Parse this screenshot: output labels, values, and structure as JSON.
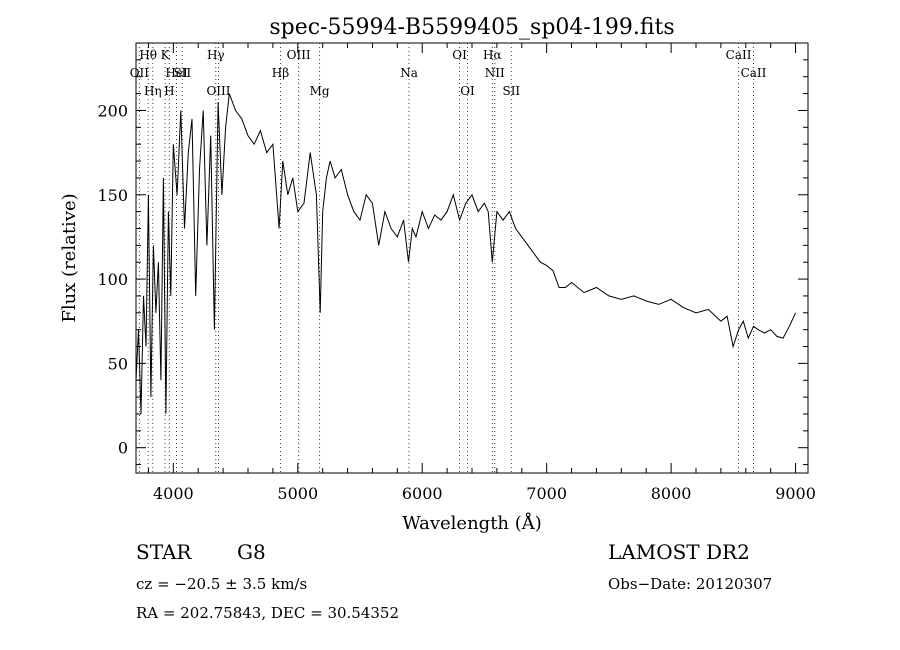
{
  "chart_data": {
    "type": "line",
    "title": "spec-55994-B5599405_sp04-199.fits",
    "xlabel": "Wavelength (Å)",
    "ylabel": "Flux (relative)",
    "xlim": [
      3700,
      9100
    ],
    "ylim": [
      -15,
      240
    ],
    "xticks": [
      4000,
      5000,
      6000,
      7000,
      8000,
      9000
    ],
    "yticks": [
      0,
      50,
      100,
      150,
      200
    ],
    "grid": false,
    "line_color": "#000000",
    "marker_color": "#cc0000",
    "series": [
      {
        "x": [
          3700,
          3720,
          3740,
          3760,
          3780,
          3800,
          3820,
          3840,
          3860,
          3880,
          3900,
          3920,
          3940,
          3960,
          3980,
          4000,
          4030,
          4060,
          4090,
          4120,
          4150,
          4180,
          4210,
          4240,
          4270,
          4300,
          4330,
          4360,
          4390,
          4420,
          4450,
          4500,
          4550,
          4600,
          4650,
          4700,
          4750,
          4800,
          4850,
          4880,
          4920,
          4960,
          5000,
          5050,
          5100,
          5150,
          5180,
          5200,
          5230,
          5260,
          5300,
          5350,
          5400,
          5450,
          5500,
          5550,
          5600,
          5650,
          5700,
          5750,
          5800,
          5850,
          5890,
          5920,
          5950,
          6000,
          6050,
          6100,
          6150,
          6200,
          6250,
          6300,
          6350,
          6400,
          6450,
          6500,
          6530,
          6563,
          6600,
          6650,
          6700,
          6750,
          6800,
          6850,
          6900,
          6950,
          7000,
          7050,
          7100,
          7150,
          7200,
          7300,
          7400,
          7500,
          7600,
          7700,
          7800,
          7900,
          8000,
          8100,
          8200,
          8300,
          8400,
          8450,
          8498,
          8542,
          8580,
          8620,
          8662,
          8700,
          8750,
          8800,
          8850,
          8900,
          8950,
          9000
        ],
        "y": [
          40,
          70,
          20,
          90,
          60,
          150,
          30,
          120,
          80,
          110,
          40,
          160,
          20,
          140,
          90,
          180,
          150,
          200,
          130,
          175,
          195,
          90,
          165,
          200,
          120,
          185,
          70,
          205,
          150,
          190,
          210,
          200,
          195,
          185,
          180,
          188,
          175,
          180,
          130,
          170,
          150,
          160,
          140,
          145,
          175,
          150,
          80,
          140,
          160,
          170,
          160,
          165,
          150,
          140,
          135,
          150,
          145,
          120,
          140,
          130,
          125,
          135,
          110,
          130,
          125,
          140,
          130,
          138,
          135,
          140,
          150,
          135,
          145,
          150,
          140,
          145,
          140,
          110,
          140,
          135,
          140,
          130,
          125,
          120,
          115,
          110,
          108,
          105,
          95,
          95,
          98,
          92,
          95,
          90,
          88,
          90,
          87,
          85,
          88,
          83,
          80,
          82,
          75,
          78,
          60,
          70,
          75,
          65,
          72,
          70,
          68,
          70,
          66,
          65,
          72,
          80
        ]
      }
    ],
    "lines": [
      {
        "label": "OII",
        "x": 3727
      },
      {
        "label": "Hθ",
        "x": 3798
      },
      {
        "label": "Hη",
        "x": 3835
      },
      {
        "label": "K",
        "x": 3934
      },
      {
        "label": "H",
        "x": 3968
      },
      {
        "label": "HeI",
        "x": 4026
      },
      {
        "label": "SII",
        "x": 4072
      },
      {
        "label": "Hγ",
        "x": 4341
      },
      {
        "label": "OIII",
        "x": 4363
      },
      {
        "label": "Hβ",
        "x": 4861
      },
      {
        "label": "OIII",
        "x": 5007
      },
      {
        "label": "Mg",
        "x": 5175
      },
      {
        "label": "Na",
        "x": 5894
      },
      {
        "label": "OI",
        "x": 6300
      },
      {
        "label": "OI",
        "x": 6364
      },
      {
        "label": "Hα",
        "x": 6563
      },
      {
        "label": "NII",
        "x": 6583
      },
      {
        "label": "SII",
        "x": 6716
      },
      {
        "label": "CaII",
        "x": 8542
      },
      {
        "label": "CaII",
        "x": 8662
      }
    ]
  },
  "info": {
    "object_class": "STAR",
    "subclass": "G8",
    "survey": "LAMOST DR2",
    "cz": "cz = −20.5 ± 3.5 km/s",
    "obs_date": "Obs−Date: 20120307",
    "radec": "RA = 202.75843, DEC =  30.54352"
  }
}
